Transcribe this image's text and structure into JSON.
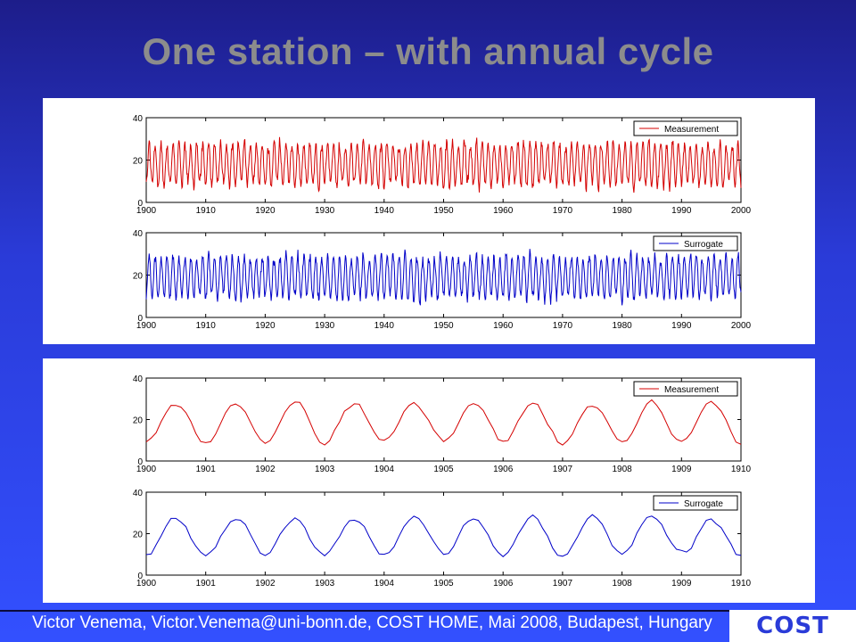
{
  "slide": {
    "title": "One station – with annual cycle",
    "footer": "Victor Venema, Victor.Venema@uni-bonn.de, COST HOME, Mai 2008, Budapest, Hungary",
    "logo_text": "COST"
  },
  "colors": {
    "measurement": "#d40000",
    "surrogate": "#0000c8"
  },
  "chart_data": [
    {
      "type": "line",
      "panel": "top",
      "row": 0,
      "xlim": [
        1900,
        2000
      ],
      "ylim": [
        0,
        40
      ],
      "xticks": [
        "1900",
        "1910",
        "1920",
        "1930",
        "1940",
        "1950",
        "1960",
        "1970",
        "1980",
        "1990",
        "2000"
      ],
      "yticks": [
        "0",
        "20",
        "40"
      ],
      "series": [
        {
          "name": "Measurement",
          "color": "#d40000",
          "mean": 18,
          "amplitude": 9.5,
          "noise": 2.5,
          "cycles_per_year": 1
        }
      ]
    },
    {
      "type": "line",
      "panel": "top",
      "row": 1,
      "xlim": [
        1900,
        2000
      ],
      "ylim": [
        0,
        40
      ],
      "xticks": [
        "1900",
        "1910",
        "1920",
        "1930",
        "1940",
        "1950",
        "1960",
        "1970",
        "1980",
        "1990",
        "2000"
      ],
      "yticks": [
        "0",
        "20",
        "40"
      ],
      "series": [
        {
          "name": "Surrogate",
          "color": "#0000c8",
          "mean": 19,
          "amplitude": 9.5,
          "noise": 2.5,
          "cycles_per_year": 1
        }
      ]
    },
    {
      "type": "line",
      "panel": "bottom",
      "row": 0,
      "xlim": [
        1900,
        1910
      ],
      "ylim": [
        0,
        40
      ],
      "xticks": [
        "1900",
        "1901",
        "1902",
        "1903",
        "1904",
        "1905",
        "1906",
        "1907",
        "1908",
        "1909",
        "1910"
      ],
      "yticks": [
        "0",
        "20",
        "40"
      ],
      "series": [
        {
          "name": "Measurement",
          "color": "#d40000",
          "mean": 18.5,
          "amplitude": 9.5,
          "noise": 1.2,
          "cycles_per_year": 1
        }
      ]
    },
    {
      "type": "line",
      "panel": "bottom",
      "row": 1,
      "xlim": [
        1900,
        1910
      ],
      "ylim": [
        0,
        40
      ],
      "xticks": [
        "1900",
        "1901",
        "1902",
        "1903",
        "1904",
        "1905",
        "1906",
        "1907",
        "1908",
        "1909",
        "1910"
      ],
      "yticks": [
        "0",
        "20",
        "40"
      ],
      "series": [
        {
          "name": "Surrogate",
          "color": "#0000c8",
          "mean": 19,
          "amplitude": 9,
          "noise": 1.2,
          "cycles_per_year": 1
        }
      ]
    }
  ]
}
